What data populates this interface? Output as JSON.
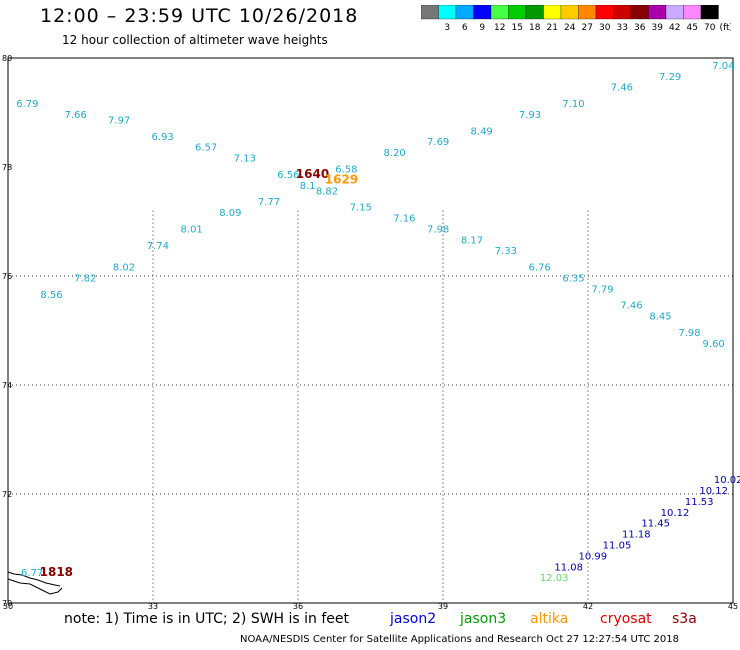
{
  "header": {
    "title": "12:00 – 23:59 UTC 10/26/2018",
    "subtitle": "12 hour collection of altimeter wave heights"
  },
  "legend": {
    "unit": "(ft)",
    "colors": [
      "#777777",
      "#00ffff",
      "#00aaff",
      "#0000ff",
      "#44ff44",
      "#00cc00",
      "#009900",
      "#ffff00",
      "#ffcc00",
      "#ff8800",
      "#ff0000",
      "#cc0000",
      "#880000",
      "#aa00aa",
      "#ccaaff",
      "#ff88ff",
      "#000000"
    ],
    "labels": [
      "3",
      "6",
      "9",
      "12",
      "15",
      "18",
      "21",
      "24",
      "27",
      "30",
      "33",
      "36",
      "39",
      "42",
      "45",
      "70"
    ]
  },
  "axes": {
    "x_ticks": [
      "30",
      "33",
      "36",
      "39",
      "42",
      "45"
    ],
    "y_ticks": [
      "70",
      "72",
      "74",
      "76",
      "78",
      "80"
    ]
  },
  "tracks": [
    {
      "color": "#22aacc",
      "points": [
        {
          "lon": 30.4,
          "lat": 79.1,
          "v": "6.79"
        },
        {
          "lon": 31.4,
          "lat": 78.9,
          "v": "7.66"
        },
        {
          "lon": 32.3,
          "lat": 78.8,
          "v": "7.97"
        },
        {
          "lon": 33.2,
          "lat": 78.5,
          "v": "6.93"
        },
        {
          "lon": 34.1,
          "lat": 78.3,
          "v": "6.57"
        },
        {
          "lon": 34.9,
          "lat": 78.1,
          "v": "7.13"
        },
        {
          "lon": 35.8,
          "lat": 77.8,
          "v": "6.56"
        },
        {
          "lon": 37.0,
          "lat": 77.9,
          "v": "6.58"
        },
        {
          "lon": 38.0,
          "lat": 78.2,
          "v": "8.20"
        },
        {
          "lon": 38.9,
          "lat": 78.4,
          "v": "7.69"
        },
        {
          "lon": 39.8,
          "lat": 78.6,
          "v": "8.49"
        },
        {
          "lon": 40.8,
          "lat": 78.9,
          "v": "7.93"
        },
        {
          "lon": 41.7,
          "lat": 79.1,
          "v": "7.10"
        },
        {
          "lon": 42.7,
          "lat": 79.4,
          "v": "7.46"
        },
        {
          "lon": 43.7,
          "lat": 79.6,
          "v": "7.29"
        },
        {
          "lon": 44.8,
          "lat": 79.8,
          "v": "7.04"
        }
      ]
    },
    {
      "color": "#22aacc",
      "points": [
        {
          "lon": 30.9,
          "lat": 75.6,
          "v": "8.56"
        },
        {
          "lon": 31.6,
          "lat": 75.9,
          "v": "7.82"
        },
        {
          "lon": 32.4,
          "lat": 76.1,
          "v": "8.02"
        },
        {
          "lon": 33.1,
          "lat": 76.5,
          "v": "7.74"
        },
        {
          "lon": 33.8,
          "lat": 76.8,
          "v": "8.01"
        },
        {
          "lon": 34.6,
          "lat": 77.1,
          "v": "8.09"
        },
        {
          "lon": 35.4,
          "lat": 77.3,
          "v": "7.77"
        },
        {
          "lon": 36.2,
          "lat": 77.6,
          "v": "8.1"
        },
        {
          "lon": 36.6,
          "lat": 77.5,
          "v": "8.82"
        },
        {
          "lon": 37.3,
          "lat": 77.2,
          "v": "7.15"
        },
        {
          "lon": 38.2,
          "lat": 77.0,
          "v": "7.16"
        },
        {
          "lon": 38.9,
          "lat": 76.8,
          "v": "7.98"
        },
        {
          "lon": 39.6,
          "lat": 76.6,
          "v": "8.17"
        },
        {
          "lon": 40.3,
          "lat": 76.4,
          "v": "7.33"
        },
        {
          "lon": 41.0,
          "lat": 76.1,
          "v": "6.76"
        },
        {
          "lon": 41.7,
          "lat": 75.9,
          "v": "6.35"
        },
        {
          "lon": 42.3,
          "lat": 75.7,
          "v": "7.79"
        },
        {
          "lon": 42.9,
          "lat": 75.4,
          "v": "7.46"
        },
        {
          "lon": 43.5,
          "lat": 75.2,
          "v": "8.45"
        },
        {
          "lon": 44.1,
          "lat": 74.9,
          "v": "7.98"
        },
        {
          "lon": 44.6,
          "lat": 74.7,
          "v": "9.60"
        }
      ]
    },
    {
      "color": "#0000aa",
      "points": [
        {
          "lon": 41.6,
          "lat": 70.6,
          "v": "11.08"
        },
        {
          "lon": 42.1,
          "lat": 70.8,
          "v": "10.99"
        },
        {
          "lon": 42.6,
          "lat": 71.0,
          "v": "11.05"
        },
        {
          "lon": 43.0,
          "lat": 71.2,
          "v": "11.18"
        },
        {
          "lon": 43.4,
          "lat": 71.4,
          "v": "11.45"
        },
        {
          "lon": 43.8,
          "lat": 71.6,
          "v": "10.12"
        },
        {
          "lon": 44.3,
          "lat": 71.8,
          "v": "11.53"
        },
        {
          "lon": 44.6,
          "lat": 72.0,
          "v": "10.12"
        },
        {
          "lon": 44.9,
          "lat": 72.2,
          "v": "10.02"
        }
      ]
    },
    {
      "color": "#66dd66",
      "points": [
        {
          "lon": 41.3,
          "lat": 70.4,
          "v": "12.03"
        }
      ]
    }
  ],
  "time_labels": [
    {
      "lon": 36.3,
      "lat": 77.8,
      "v": "1640",
      "color": "#880000"
    },
    {
      "lon": 36.9,
      "lat": 77.7,
      "v": "1629",
      "color": "#ff9900"
    },
    {
      "lon": 31.0,
      "lat": 70.5,
      "v": "1818",
      "color": "#880000"
    }
  ],
  "coast_label": {
    "lon": 30.5,
    "lat": 70.5,
    "v": "6.77"
  },
  "note": {
    "text": "note: 1) Time is in UTC; 2) SWH is in feet",
    "satellites": [
      {
        "name": "jason2",
        "color": "#0000dd"
      },
      {
        "name": "jason3",
        "color": "#009900"
      },
      {
        "name": "altika",
        "color": "#ff9900"
      },
      {
        "name": "cryosat",
        "color": "#dd0000"
      },
      {
        "name": "s3a",
        "color": "#880000"
      }
    ]
  },
  "footer": "NOAA/NESDIS Center for Satellite Applications and Research    Oct 27 12:27:54 UTC 2018"
}
